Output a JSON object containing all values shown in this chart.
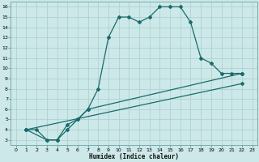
{
  "title": "",
  "xlabel": "Humidex (Indice chaleur)",
  "bg_color": "#cce8e8",
  "line_color": "#1a6b6b",
  "grid_color": "#aacece",
  "xlim": [
    -0.5,
    23.5
  ],
  "ylim": [
    2.5,
    16.5
  ],
  "xticks": [
    0,
    1,
    2,
    3,
    4,
    5,
    6,
    7,
    8,
    9,
    10,
    11,
    12,
    13,
    14,
    15,
    16,
    17,
    18,
    19,
    20,
    21,
    22,
    23
  ],
  "yticks": [
    3,
    4,
    5,
    6,
    7,
    8,
    9,
    10,
    11,
    12,
    13,
    14,
    15,
    16
  ],
  "line1_x": [
    1,
    2,
    3,
    4,
    5,
    6,
    7,
    8,
    9,
    10,
    11,
    12,
    13,
    14,
    15,
    16,
    17,
    18,
    19,
    20,
    21,
    22
  ],
  "line1_y": [
    4,
    4,
    3,
    3,
    4,
    5,
    6,
    8,
    13,
    15,
    15,
    14.5,
    15,
    16,
    16,
    16,
    14.5,
    11,
    10.5,
    9.5,
    9.5,
    9.5
  ],
  "line2_x": [
    1,
    3,
    4,
    5,
    6,
    7,
    22
  ],
  "line2_y": [
    4,
    3,
    3,
    4.5,
    5,
    6,
    9.5
  ],
  "line3_x": [
    1,
    22
  ],
  "line3_y": [
    4,
    8.5
  ]
}
